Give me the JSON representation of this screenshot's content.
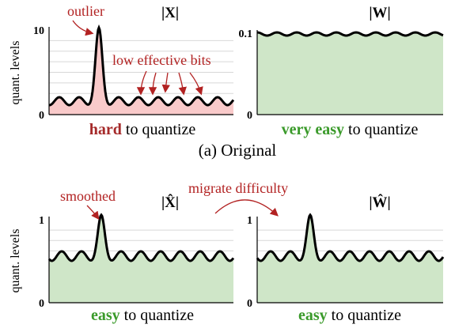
{
  "panels": [
    {
      "title": "|X|",
      "y_top": "10",
      "y_bottom": "0",
      "caption_emph": "hard",
      "caption_rest": "to quantize"
    },
    {
      "title": "|W|",
      "y_top": "0.1",
      "y_bottom": "0",
      "caption_emph": "very easy",
      "caption_rest": "to quantize"
    },
    {
      "title": "|X̂|",
      "y_top": "1",
      "y_bottom": "0",
      "caption_emph": "easy",
      "caption_rest": "to quantize"
    },
    {
      "title": "|Ŵ|",
      "y_top": "1",
      "y_bottom": "0",
      "caption_emph": "easy",
      "caption_rest": "to quantize"
    }
  ],
  "y_axis_label": "quant. levels",
  "annotations": {
    "outlier": "outlier",
    "low_bits": "low effective bits",
    "smoothed": "smoothed",
    "migrate": "migrate difficulty"
  },
  "subcaption": "(a) Original"
}
